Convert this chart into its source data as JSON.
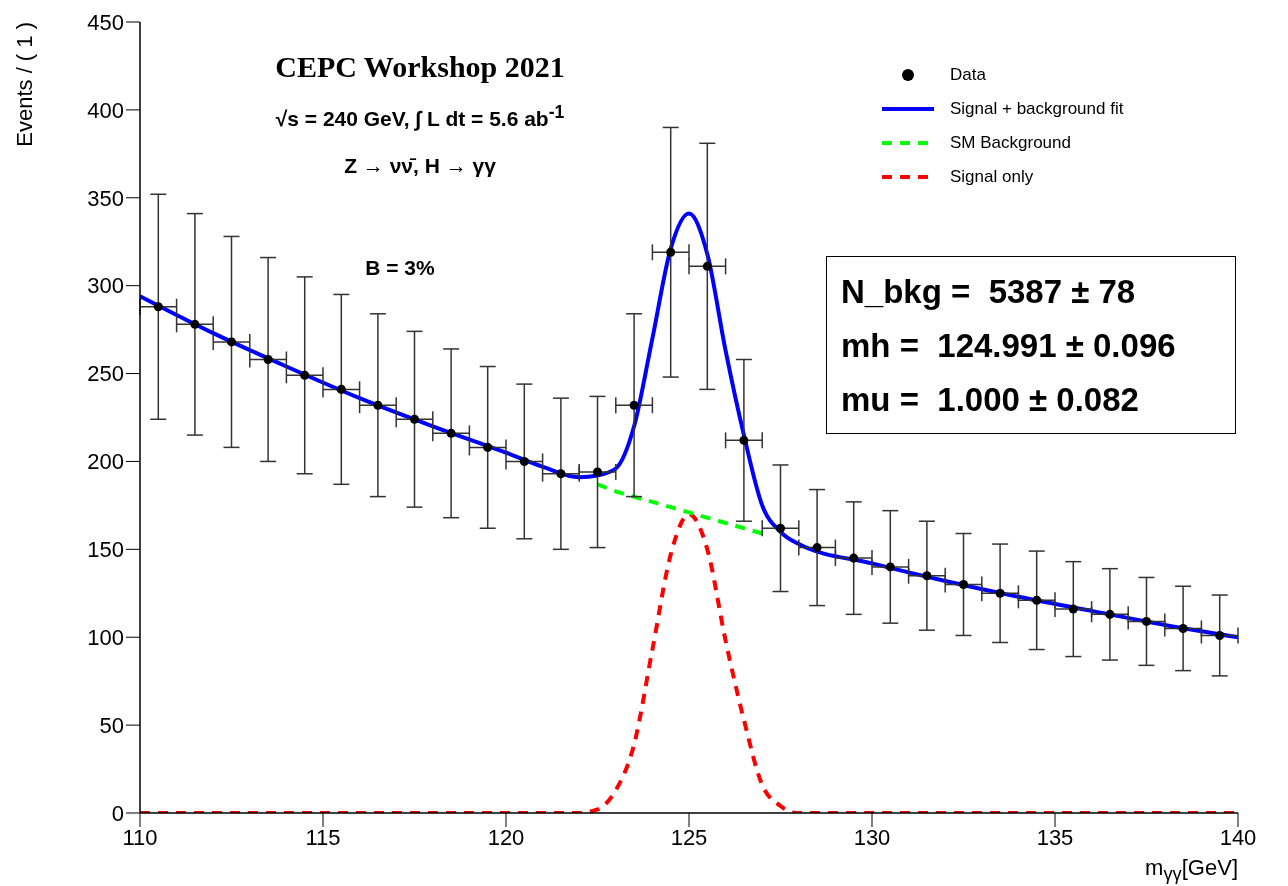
{
  "chart_data": {
    "type": "scatter",
    "title": "CEPC Workshop 2021",
    "annotations": [
      "√s = 240 GeV, ∫ L dt = 5.6 ab$^{-1}$",
      "Z → νν̄,  H → γγ",
      "B = 3%",
      "N_bkg =  5387 ± 78",
      "mh =  124.991 ± 0.096",
      "mu =  1.000 ± 0.082"
    ],
    "xlabel": "m$_{γγ}$[GeV]",
    "ylabel": "Events / ( 1 )",
    "xlim": [
      110,
      140
    ],
    "xticks": [
      110,
      115,
      120,
      125,
      130,
      135,
      140
    ],
    "ylim": [
      0,
      450
    ],
    "yticks": [
      0,
      50,
      100,
      150,
      200,
      250,
      300,
      350,
      400,
      450
    ],
    "legend": "top right",
    "series": [
      {
        "name": "Data",
        "color": "#000000",
        "marker": "circle",
        "x": [
          110.5,
          111.5,
          112.5,
          113.5,
          114.5,
          115.5,
          116.5,
          117.5,
          118.5,
          119.5,
          120.5,
          121.5,
          122.5,
          123.5,
          124.5,
          125.5,
          126.5,
          127.5,
          128.5,
          129.5,
          130.5,
          131.5,
          132.5,
          133.5,
          134.5,
          135.5,
          136.5,
          137.5,
          138.5,
          139.5
        ],
        "values": [
          288,
          278,
          268,
          258,
          249,
          241,
          232,
          224,
          216,
          208,
          200,
          193,
          194,
          232,
          319,
          311,
          212,
          162,
          151,
          145,
          140,
          135,
          130,
          125,
          121,
          116,
          113,
          109,
          105,
          101
        ],
        "errors": [
          64,
          63,
          60,
          58,
          56,
          54,
          52,
          50,
          48,
          46,
          44,
          43,
          43,
          52,
          71,
          70,
          46,
          36,
          33,
          32,
          32,
          31,
          29,
          28,
          28,
          27,
          26,
          25,
          24,
          23
        ],
        "xerrors": [
          0.5,
          0.5,
          0.5,
          0.5,
          0.5,
          0.5,
          0.5,
          0.5,
          0.5,
          0.5,
          0.5,
          0.5,
          0.5,
          0.5,
          0.5,
          0.5,
          0.5,
          0.5,
          0.5,
          0.5,
          0.5,
          0.5,
          0.5,
          0.5,
          0.5,
          0.5,
          0.5,
          0.5,
          0.5,
          0.5
        ]
      },
      {
        "name": "Signal + background fit",
        "type": "line",
        "color": "#0000ff",
        "line_style": "solid",
        "x": [
          110,
          112,
          114,
          116,
          118,
          120,
          121,
          122,
          122.5,
          123,
          123.5,
          124,
          124.5,
          125,
          125.5,
          126,
          126.5,
          127,
          127.5,
          128,
          130,
          132,
          134,
          136,
          138,
          140
        ],
        "values": [
          294,
          273,
          254,
          236,
          220,
          205,
          197,
          191,
          192,
          196,
          220,
          270,
          321,
          341,
          318,
          263,
          215,
          175,
          160,
          153,
          142,
          132,
          123,
          115,
          107,
          100
        ]
      },
      {
        "name": "SM Background",
        "type": "line",
        "color": "#00ff00",
        "line_style": "dashed",
        "x": [
          122.5,
          123,
          124,
          125,
          126,
          127
        ],
        "values": [
          187,
          183,
          177,
          171,
          165,
          159
        ]
      },
      {
        "name": "Signal only",
        "type": "line",
        "color": "#ff0000",
        "line_style": "dashed",
        "x": [
          110,
          122,
          122.5,
          123,
          123.5,
          124,
          124.5,
          125,
          125.5,
          126,
          126.5,
          127,
          127.5,
          128,
          140
        ],
        "values": [
          0,
          0,
          2,
          13,
          39,
          93,
          147,
          170,
          150,
          98,
          53,
          16,
          4,
          0,
          0
        ]
      }
    ]
  }
}
